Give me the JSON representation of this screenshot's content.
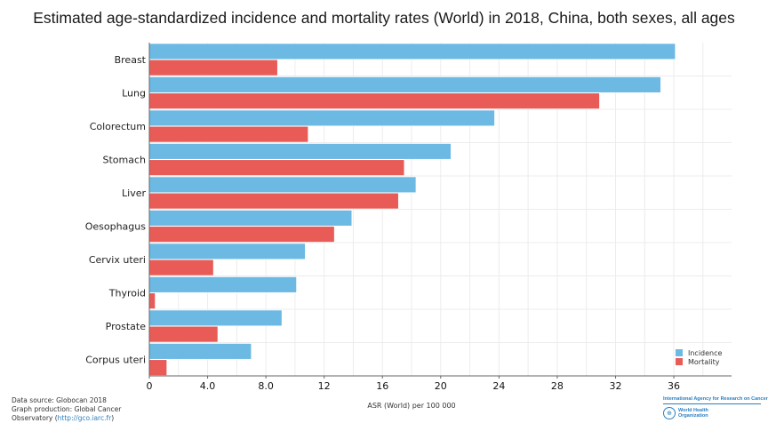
{
  "title": "Estimated age-standardized incidence and mortality rates (World) in 2018, China, both sexes, all ages",
  "footer": {
    "line1": "Data source: Globocan 2018",
    "line2": "Graph production: Global Cancer",
    "line3_prefix": "Observatory (",
    "link": "http://gco.iarc.fr",
    "line3_suffix": ")"
  },
  "logos": {
    "iarc": "International Agency for Research on Cancer",
    "who_emblem": "globe-icon",
    "who": "World Health Organization"
  },
  "colors": {
    "incidence": "#6cb9e4",
    "mortality": "#e85b56",
    "grid": "#ececec",
    "axis": "#666666"
  },
  "chart_data": {
    "type": "bar",
    "orientation": "horizontal",
    "title": "Estimated age-standardized incidence and mortality rates (World) in 2018, China, both sexes, all ages",
    "xlabel": "ASR (World) per 100 000",
    "ylabel": "",
    "xlim": [
      0,
      40
    ],
    "xticks": [
      0,
      4,
      8,
      12,
      16,
      20,
      24,
      28,
      32,
      36
    ],
    "xtick_labels": [
      "0",
      "4.0",
      "8.0",
      "12",
      "16",
      "20",
      "24",
      "28",
      "32",
      "36"
    ],
    "grid": true,
    "legend_position": "bottom-right",
    "categories": [
      "Breast",
      "Lung",
      "Colorectum",
      "Stomach",
      "Liver",
      "Oesophagus",
      "Cervix uteri",
      "Thyroid",
      "Prostate",
      "Corpus uteri"
    ],
    "series": [
      {
        "name": "Incidence",
        "color": "#6cb9e4",
        "values": [
          36.1,
          35.1,
          23.7,
          20.7,
          18.3,
          13.9,
          10.7,
          10.1,
          9.1,
          7.0
        ]
      },
      {
        "name": "Mortality",
        "color": "#e85b56",
        "values": [
          8.8,
          30.9,
          10.9,
          17.5,
          17.1,
          12.7,
          4.4,
          0.4,
          4.7,
          1.2
        ]
      }
    ]
  }
}
